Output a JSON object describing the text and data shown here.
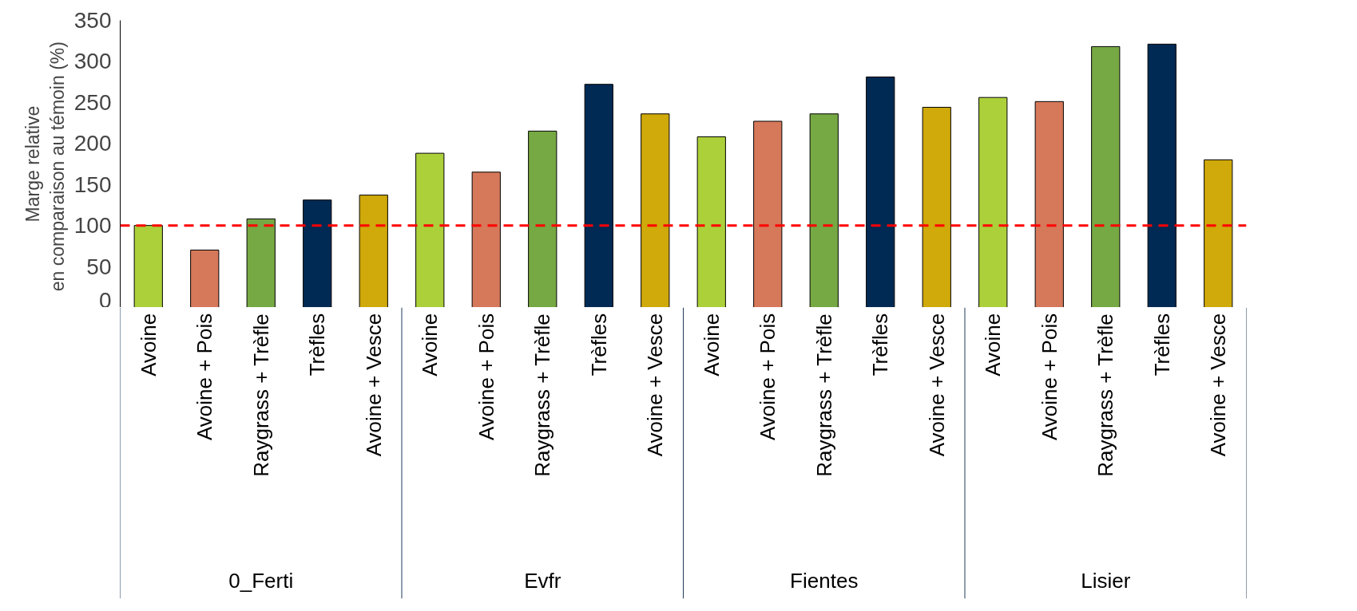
{
  "chart_data": {
    "type": "bar",
    "ylabel": "Marge relative\nen comparaison au témoin  (%)",
    "categories": [
      "Avoine",
      "Avoine + Pois",
      "Raygrass + Trèfle",
      "Trèfles",
      "Avoine + Vesce",
      "Avoine",
      "Avoine + Pois",
      "Raygrass + Trèfle",
      "Trèfles",
      "Avoine + Vesce",
      "Avoine",
      "Avoine + Pois",
      "Raygrass + Trèfle",
      "Trèfles",
      "Avoine + Vesce",
      "Avoine",
      "Avoine + Pois",
      "Raygrass + Trèfle",
      "Trèfles",
      "Avoine + Vesce"
    ],
    "values": [
      100,
      70,
      108,
      131,
      137,
      188,
      165,
      215,
      272,
      236,
      208,
      227,
      236,
      281,
      244,
      256,
      251,
      318,
      321,
      180
    ],
    "colors": [
      "#acd03a",
      "#d6785a",
      "#76a843",
      "#002a54",
      "#d0a90a",
      "#acd03a",
      "#d6785a",
      "#76a843",
      "#002a54",
      "#d0a90a",
      "#acd03a",
      "#d6785a",
      "#76a843",
      "#002a54",
      "#d0a90a",
      "#acd03a",
      "#d6785a",
      "#76a843",
      "#002a54",
      "#d0a90a"
    ],
    "annotations": [
      "0_Ferti",
      "Evfr",
      "Fientes",
      "Lisier"
    ],
    "ylim": [
      0,
      350
    ],
    "yticks": [
      0,
      50,
      100,
      150,
      200,
      250,
      300,
      350
    ],
    "grid": false,
    "ref_lines": [
      {
        "axis": "y",
        "value": 100,
        "label": null,
        "color": "#ff0000",
        "line_style": "dashed"
      }
    ]
  }
}
